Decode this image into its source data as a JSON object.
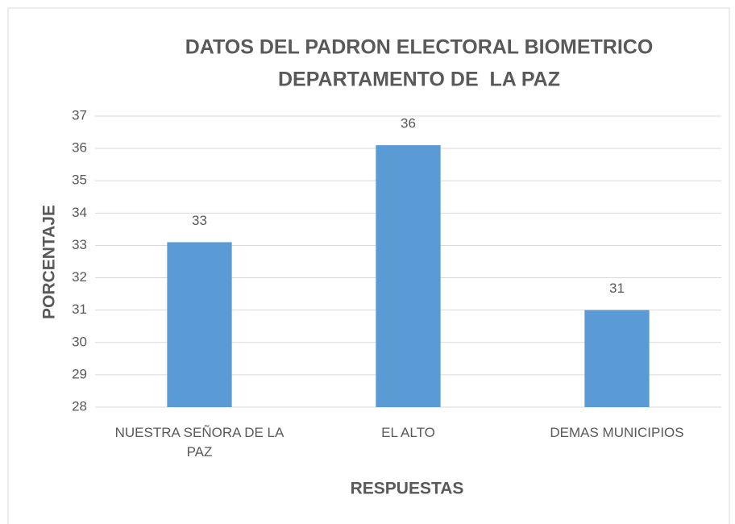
{
  "chart_data": {
    "type": "bar",
    "title": [
      "DATOS DEL PADRON ELECTORAL BIOMETRICO",
      "DEPARTAMENTO DE  LA PAZ"
    ],
    "x_label": "RESPUESTAS",
    "y_label": "PORCENTAJE",
    "categories": [
      "NUESTRA SEÑORA DE LA PAZ",
      "EL ALTO",
      "DEMAS MUNICIPIOS"
    ],
    "values": [
      33.1,
      36.1,
      31
    ],
    "value_labels": [
      "33",
      "36",
      "31"
    ],
    "color": "#5b9bd5",
    "ylim": [
      28,
      37
    ],
    "yticks": [
      28,
      29,
      30,
      31,
      32,
      33,
      34,
      35,
      36,
      37
    ],
    "grid": true
  }
}
